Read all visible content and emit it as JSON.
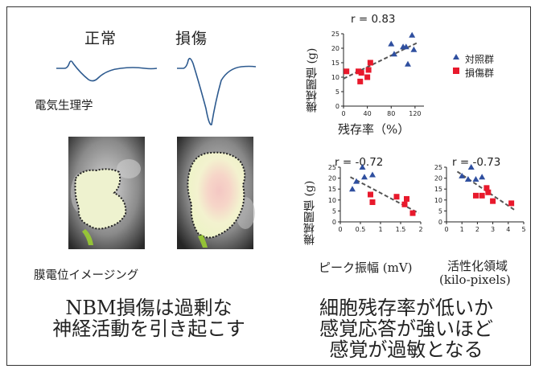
{
  "labels": {
    "normal": "正常",
    "injury": "損傷",
    "electrophysiology": "電気生理学",
    "vsd_imaging": "膜電位イメージング"
  },
  "conclusions": {
    "left_line1": "NBM損傷は過剰な",
    "left_line2": "神経活動を引き起こす",
    "right_line1": "細胞残存率が低いか",
    "right_line2": "感覚応答が強いほど",
    "right_line3": "感覚が過敏となる"
  },
  "legend": {
    "control": "対照群",
    "injury": "損傷群"
  },
  "colors": {
    "control": "#2f4f9f",
    "injury": "#e8192c",
    "trace": "#2d5a8f",
    "trend": "#555555"
  },
  "chart_data": [
    {
      "type": "scatter",
      "r_label": "r = 0.83",
      "ylabel": "機械閾値 (g)",
      "xlabel": "残存率（%）",
      "xlim": [
        0,
        135
      ],
      "ylim": [
        0,
        25
      ],
      "xticks": [
        0,
        40,
        80,
        120
      ],
      "yticks": [
        0,
        5,
        10,
        15,
        20,
        25
      ],
      "trend": [
        [
          0,
          9.5
        ],
        [
          125,
          22
        ]
      ],
      "series": [
        {
          "group": "control",
          "points": [
            [
              80,
              21.5
            ],
            [
              85,
              18
            ],
            [
              100,
              20.5
            ],
            [
              105,
              20.5
            ],
            [
              108,
              14.5
            ],
            [
              115,
              24.5
            ],
            [
              118,
              19.5
            ]
          ]
        },
        {
          "group": "injury",
          "points": [
            [
              5,
              12
            ],
            [
              25,
              12
            ],
            [
              28,
              8.5
            ],
            [
              30,
              11.5
            ],
            [
              40,
              10
            ],
            [
              42,
              12.5
            ],
            [
              45,
              15
            ]
          ]
        }
      ]
    },
    {
      "type": "scatter",
      "r_label": "r = -0.72",
      "ylabel": "機械閾値 (g)",
      "xlabel": "ピーク振幅 (mV)",
      "xlim": [
        0,
        2
      ],
      "ylim": [
        0,
        25
      ],
      "xticks": [
        0,
        0.5,
        1,
        1.5,
        2
      ],
      "xticklabels": [
        "0",
        "0.5",
        "1",
        "1.5",
        "2"
      ],
      "yticks": [
        0,
        5,
        10,
        15,
        20,
        25
      ],
      "trend": [
        [
          0.25,
          20.5
        ],
        [
          1.95,
          4
        ]
      ],
      "series": [
        {
          "group": "control",
          "points": [
            [
              0.3,
              15
            ],
            [
              0.4,
              18.5
            ],
            [
              0.55,
              25
            ],
            [
              0.6,
              20.5
            ],
            [
              0.8,
              21.5
            ]
          ]
        },
        {
          "group": "injury",
          "points": [
            [
              0.75,
              12.5
            ],
            [
              0.8,
              9
            ],
            [
              1.4,
              11.5
            ],
            [
              1.6,
              8
            ],
            [
              1.65,
              10.5
            ],
            [
              1.8,
              4
            ]
          ]
        }
      ]
    },
    {
      "type": "scatter",
      "r_label": "r = -0.73",
      "ylabel": "",
      "xlabel": "活性化領域",
      "xlabel2": "(kilo-pixels)",
      "xlim": [
        0,
        5
      ],
      "ylim": [
        0,
        25
      ],
      "xticks": [
        0,
        1,
        2,
        3,
        4,
        5
      ],
      "yticks": [
        0,
        5,
        10,
        15,
        20,
        25
      ],
      "trend": [
        [
          0.7,
          23
        ],
        [
          4.5,
          5
        ]
      ],
      "series": [
        {
          "group": "control",
          "points": [
            [
              1,
              21
            ],
            [
              1.4,
              19.5
            ],
            [
              1.6,
              25
            ],
            [
              1.9,
              19.5
            ],
            [
              2.3,
              20.5
            ]
          ]
        },
        {
          "group": "injury",
          "points": [
            [
              1.9,
              12
            ],
            [
              2.3,
              12
            ],
            [
              2.6,
              15.5
            ],
            [
              2.7,
              13.5
            ],
            [
              3,
              9.5
            ],
            [
              4.2,
              8.5
            ]
          ]
        }
      ]
    }
  ]
}
